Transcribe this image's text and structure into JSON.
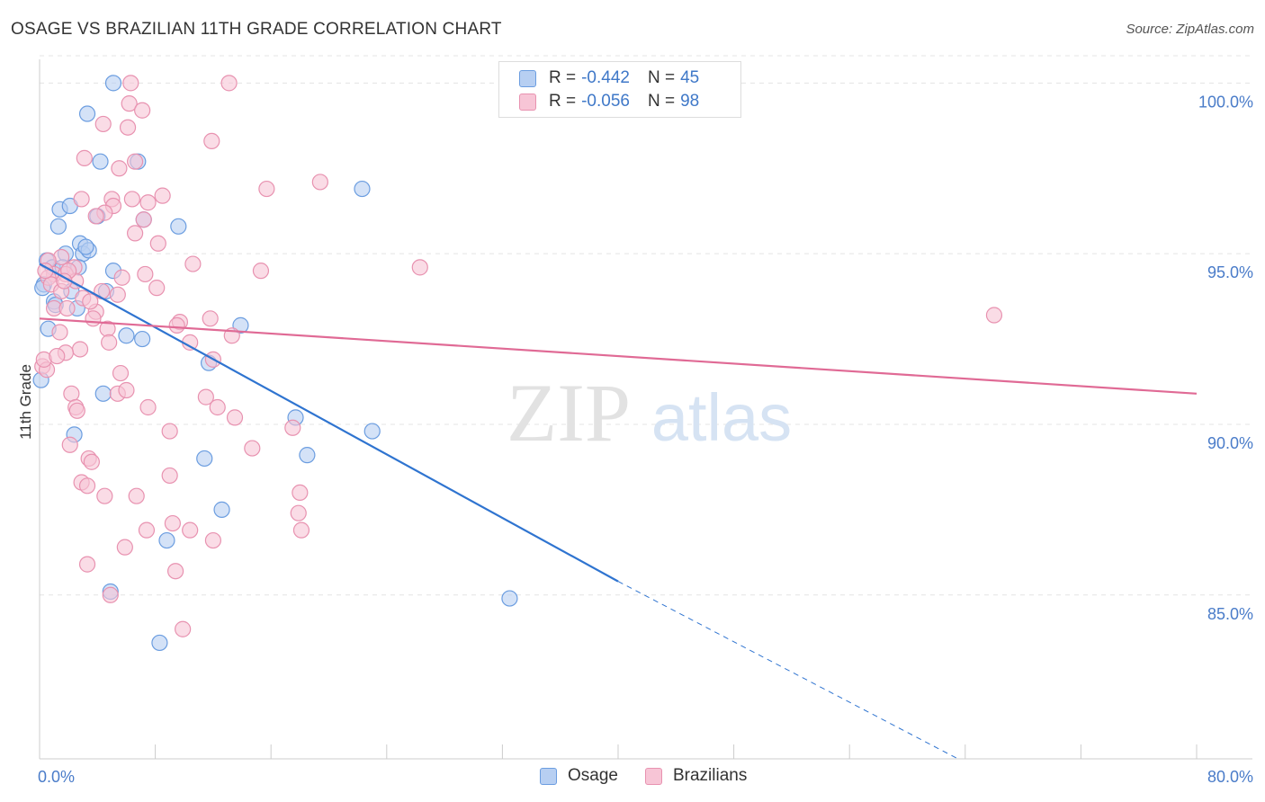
{
  "title": "OSAGE VS BRAZILIAN 11TH GRADE CORRELATION CHART",
  "source": "Source: ZipAtlas.com",
  "watermark": {
    "zip": "ZIP",
    "atlas": "atlas"
  },
  "legend": {
    "rows": [
      {
        "r_label": "R =",
        "r_value": "-0.442",
        "n_label": "N =",
        "n_value": "45"
      },
      {
        "r_label": "R =",
        "r_value": "-0.056",
        "n_label": "N =",
        "n_value": "98"
      }
    ]
  },
  "chart_data": {
    "type": "scatter",
    "title": "OSAGE VS BRAZILIAN 11TH GRADE CORRELATION CHART",
    "xlabel": "",
    "ylabel": "11th Grade",
    "xlim": [
      0,
      80
    ],
    "ylim": [
      80.2,
      100.8
    ],
    "x_tick_labels": [
      "0.0%",
      "80.0%"
    ],
    "y_ticks": [
      85,
      90,
      95,
      100
    ],
    "y_tick_labels": [
      "85.0%",
      "90.0%",
      "95.0%",
      "100.0%"
    ],
    "grid": "horizontal dashed",
    "legend_position": "top-center",
    "series": [
      {
        "name": "Osage",
        "color": "#6b9de0",
        "fill": "#b7cff2",
        "line_color": "#2f74d0",
        "r": -0.442,
        "n": 45,
        "trend": {
          "x0": 0,
          "y0": 94.7,
          "x1": 40,
          "y1": 85.4,
          "dashed_to_x": 63.5,
          "dashed_to_y": 80.2
        },
        "points": [
          [
            5.1,
            100.0
          ],
          [
            3.3,
            99.1
          ],
          [
            4.2,
            97.7
          ],
          [
            6.8,
            97.7
          ],
          [
            22.3,
            96.9
          ],
          [
            1.4,
            96.3
          ],
          [
            2.1,
            96.4
          ],
          [
            4.0,
            96.1
          ],
          [
            7.2,
            96.0
          ],
          [
            9.6,
            95.8
          ],
          [
            1.3,
            95.8
          ],
          [
            2.8,
            95.3
          ],
          [
            3.0,
            95.0
          ],
          [
            3.4,
            95.1
          ],
          [
            0.5,
            94.8
          ],
          [
            1.8,
            95.0
          ],
          [
            0.9,
            94.6
          ],
          [
            2.7,
            94.6
          ],
          [
            5.1,
            94.5
          ],
          [
            0.3,
            94.1
          ],
          [
            2.2,
            93.9
          ],
          [
            4.6,
            93.9
          ],
          [
            1.0,
            93.6
          ],
          [
            2.6,
            93.4
          ],
          [
            0.6,
            92.8
          ],
          [
            13.9,
            92.9
          ],
          [
            7.1,
            92.5
          ],
          [
            11.7,
            91.8
          ],
          [
            4.4,
            90.9
          ],
          [
            17.7,
            90.2
          ],
          [
            23.0,
            89.8
          ],
          [
            2.4,
            89.7
          ],
          [
            18.5,
            89.1
          ],
          [
            11.4,
            89.0
          ],
          [
            12.6,
            87.5
          ],
          [
            8.8,
            86.6
          ],
          [
            4.9,
            85.1
          ],
          [
            32.5,
            84.9
          ],
          [
            8.3,
            83.6
          ],
          [
            0.1,
            91.3
          ],
          [
            1.6,
            94.6
          ],
          [
            3.2,
            95.2
          ],
          [
            0.2,
            94.0
          ],
          [
            6.0,
            92.6
          ],
          [
            1.1,
            93.5
          ]
        ]
      },
      {
        "name": "Brazilians",
        "color": "#e892b0",
        "fill": "#f7c5d6",
        "line_color": "#e06a95",
        "r": -0.056,
        "n": 98,
        "trend": {
          "x0": 0,
          "y0": 93.1,
          "x1": 80,
          "y1": 90.9
        },
        "points": [
          [
            6.3,
            100.0
          ],
          [
            13.1,
            100.0
          ],
          [
            6.2,
            99.4
          ],
          [
            7.1,
            99.2
          ],
          [
            4.4,
            98.8
          ],
          [
            6.1,
            98.7
          ],
          [
            11.9,
            98.3
          ],
          [
            3.1,
            97.8
          ],
          [
            6.6,
            97.7
          ],
          [
            5.5,
            97.5
          ],
          [
            19.4,
            97.1
          ],
          [
            15.7,
            96.9
          ],
          [
            8.5,
            96.7
          ],
          [
            2.9,
            96.6
          ],
          [
            5.0,
            96.6
          ],
          [
            6.4,
            96.6
          ],
          [
            7.5,
            96.5
          ],
          [
            5.1,
            96.4
          ],
          [
            4.5,
            96.2
          ],
          [
            3.9,
            96.1
          ],
          [
            7.2,
            96.0
          ],
          [
            6.6,
            95.6
          ],
          [
            8.2,
            95.3
          ],
          [
            1.5,
            94.9
          ],
          [
            10.6,
            94.7
          ],
          [
            0.6,
            94.8
          ],
          [
            2.4,
            94.6
          ],
          [
            15.3,
            94.5
          ],
          [
            26.3,
            94.6
          ],
          [
            1.0,
            94.4
          ],
          [
            0.6,
            94.3
          ],
          [
            1.8,
            94.4
          ],
          [
            5.7,
            94.3
          ],
          [
            2.5,
            94.2
          ],
          [
            7.3,
            94.4
          ],
          [
            0.8,
            94.1
          ],
          [
            1.5,
            93.9
          ],
          [
            4.3,
            93.9
          ],
          [
            3.0,
            93.7
          ],
          [
            5.4,
            93.8
          ],
          [
            1.0,
            93.4
          ],
          [
            1.9,
            93.4
          ],
          [
            3.9,
            93.3
          ],
          [
            3.7,
            93.1
          ],
          [
            11.8,
            93.1
          ],
          [
            9.7,
            93.0
          ],
          [
            66.0,
            93.2
          ],
          [
            4.7,
            92.8
          ],
          [
            1.4,
            92.7
          ],
          [
            10.4,
            92.4
          ],
          [
            2.8,
            92.2
          ],
          [
            1.8,
            92.1
          ],
          [
            12.0,
            91.9
          ],
          [
            0.2,
            91.7
          ],
          [
            5.6,
            91.5
          ],
          [
            0.5,
            91.6
          ],
          [
            2.2,
            90.9
          ],
          [
            5.4,
            90.9
          ],
          [
            2.5,
            90.5
          ],
          [
            12.3,
            90.5
          ],
          [
            13.5,
            90.2
          ],
          [
            7.5,
            90.5
          ],
          [
            9.0,
            89.8
          ],
          [
            2.6,
            90.4
          ],
          [
            14.7,
            89.3
          ],
          [
            3.4,
            89.0
          ],
          [
            3.6,
            88.9
          ],
          [
            9.0,
            88.5
          ],
          [
            2.9,
            88.3
          ],
          [
            3.3,
            88.2
          ],
          [
            18.0,
            88.0
          ],
          [
            4.5,
            87.9
          ],
          [
            6.7,
            87.9
          ],
          [
            17.9,
            87.4
          ],
          [
            9.2,
            87.1
          ],
          [
            7.4,
            86.9
          ],
          [
            10.4,
            86.9
          ],
          [
            18.1,
            86.9
          ],
          [
            12.0,
            86.6
          ],
          [
            5.9,
            86.4
          ],
          [
            3.3,
            85.9
          ],
          [
            9.4,
            85.7
          ],
          [
            4.9,
            85.0
          ],
          [
            9.9,
            84.0
          ],
          [
            0.3,
            91.9
          ],
          [
            1.2,
            92.0
          ],
          [
            3.5,
            93.6
          ],
          [
            2.0,
            94.5
          ],
          [
            4.8,
            92.4
          ],
          [
            6.0,
            91.0
          ],
          [
            8.1,
            94.0
          ],
          [
            0.4,
            94.5
          ],
          [
            1.7,
            94.2
          ],
          [
            13.3,
            92.6
          ],
          [
            17.5,
            89.9
          ],
          [
            11.5,
            90.8
          ],
          [
            2.1,
            89.4
          ],
          [
            9.5,
            92.9
          ]
        ]
      }
    ]
  }
}
